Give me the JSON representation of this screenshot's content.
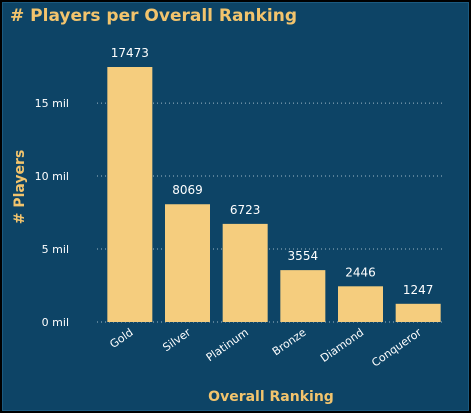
{
  "colors": {
    "background": "#0d4466",
    "bar": "#f5cd7e",
    "title": "#f2c46d",
    "text": "#ffffff",
    "grid": "#9fb7c7"
  },
  "chart_data": {
    "type": "bar",
    "title": "# Players per Overall Ranking",
    "xlabel": "Overall Ranking",
    "ylabel": "# Players",
    "categories": [
      "Gold",
      "Silver",
      "Platinum",
      "Bronze",
      "Diamond",
      "Conqueror"
    ],
    "values": [
      17473,
      8069,
      6723,
      3554,
      2446,
      1247
    ],
    "data_labels": [
      "17473",
      "8069",
      "6723",
      "3554",
      "2446",
      "1247"
    ],
    "ylim": [
      0,
      17473
    ],
    "yticks": [
      0,
      5000,
      10000,
      15000
    ],
    "ytick_labels": [
      "0 mil",
      "5 mil",
      "10 mil",
      "15 mil"
    ],
    "grid": true,
    "legend": "none"
  }
}
